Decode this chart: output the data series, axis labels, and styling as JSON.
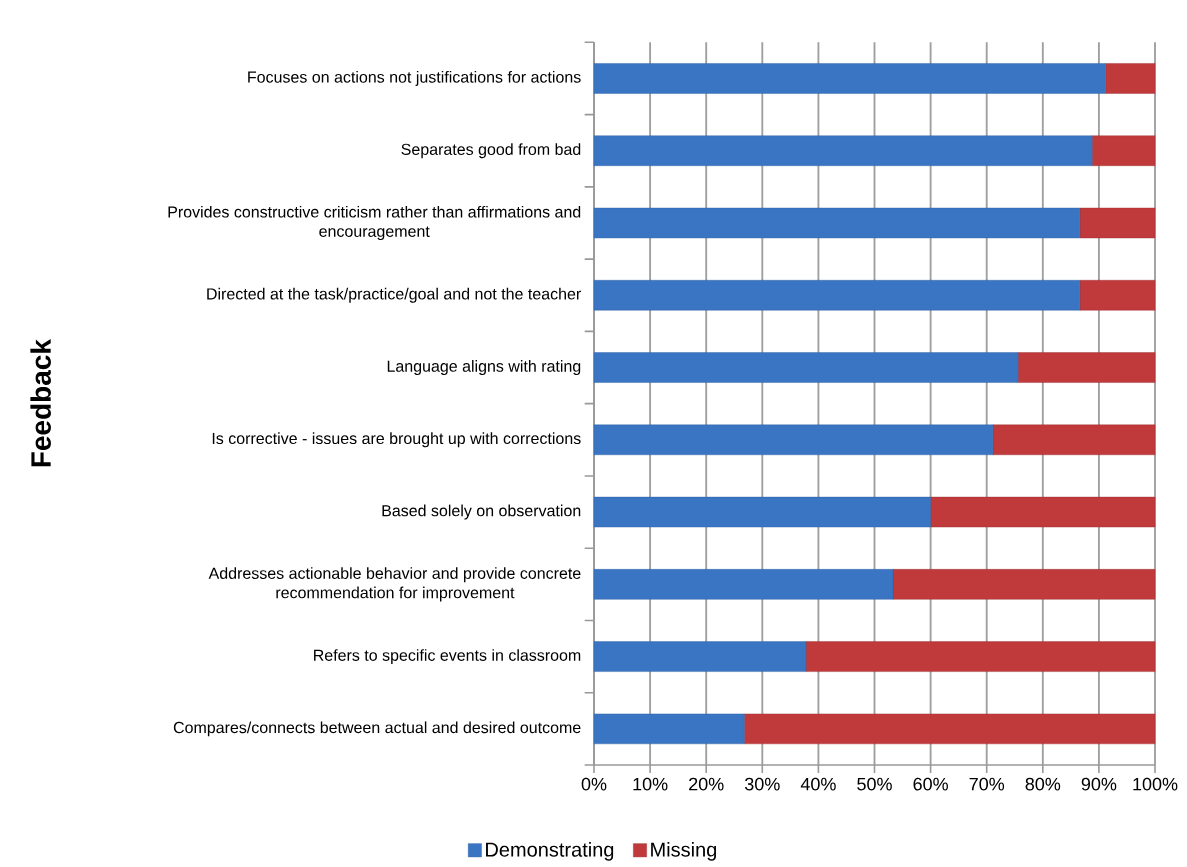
{
  "chart_data": {
    "type": "bar",
    "orientation": "horizontal",
    "stacked": true,
    "ylabel": "Feedback",
    "categories": [
      "Focuses on actions not justifications for actions",
      "Separates good from bad",
      "Provides constructive criticism rather than affirmations and encouragement",
      "Directed at the task/practice/goal and not the teacher",
      "Language aligns with rating",
      "Is corrective - issues are brought up with corrections",
      "Based solely on observation",
      "Addresses actionable behavior and provide concrete recommendation for improvement",
      "Refers to specific events in classroom",
      "Compares/connects between actual and desired outcome"
    ],
    "series": [
      {
        "name": "Demonstrating",
        "color": "#3a75c4",
        "values": [
          91.2,
          88.8,
          86.6,
          86.6,
          75.6,
          71.1,
          60,
          53.3,
          37.8,
          26.8
        ]
      },
      {
        "name": "Missing",
        "color": "#c0393b",
        "values": [
          8.8,
          11.2,
          13.4,
          13.4,
          24.4,
          28.9,
          40,
          46.7,
          62.2,
          73.2
        ]
      }
    ],
    "xlim": [
      0,
      100
    ],
    "xticks": [
      {
        "value": 0,
        "label": "0%"
      },
      {
        "value": 10,
        "label": "10%"
      },
      {
        "value": 20,
        "label": "20%"
      },
      {
        "value": 30,
        "label": "30%"
      },
      {
        "value": 40,
        "label": "40%"
      },
      {
        "value": 50,
        "label": "50%"
      },
      {
        "value": 60,
        "label": "60%"
      },
      {
        "value": 70,
        "label": "70%"
      },
      {
        "value": 80,
        "label": "80%"
      },
      {
        "value": 90,
        "label": "90%"
      },
      {
        "value": 100,
        "label": "100%"
      }
    ],
    "grid": "x",
    "legend": "bottom"
  }
}
